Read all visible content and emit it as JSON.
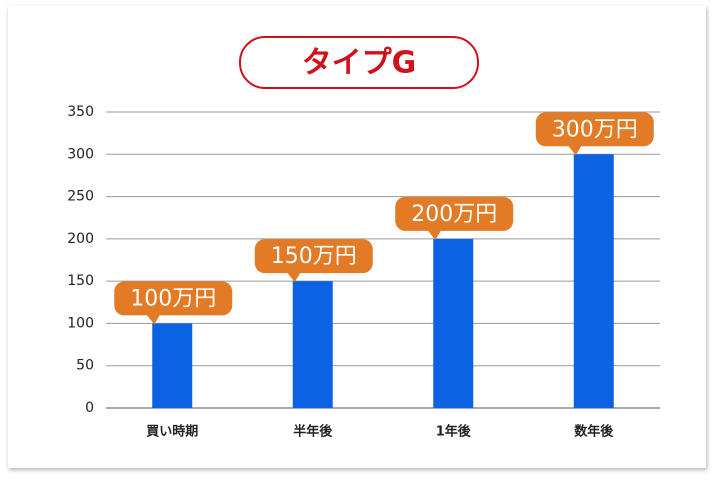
{
  "chart_data": {
    "type": "bar",
    "title": "タイプG",
    "categories": [
      "買い時期",
      "半年後",
      "1年後",
      "数年後"
    ],
    "values": [
      100,
      150,
      200,
      300
    ],
    "value_labels": [
      "100万円",
      "150万円",
      "200万円",
      "300万円"
    ],
    "color": "#0b62e3",
    "label_color": "#e27a26",
    "title_color": "#d0101b",
    "ylim": [
      0,
      350
    ],
    "yticks": [
      0,
      50,
      100,
      150,
      200,
      250,
      300,
      350
    ],
    "grid": true
  }
}
